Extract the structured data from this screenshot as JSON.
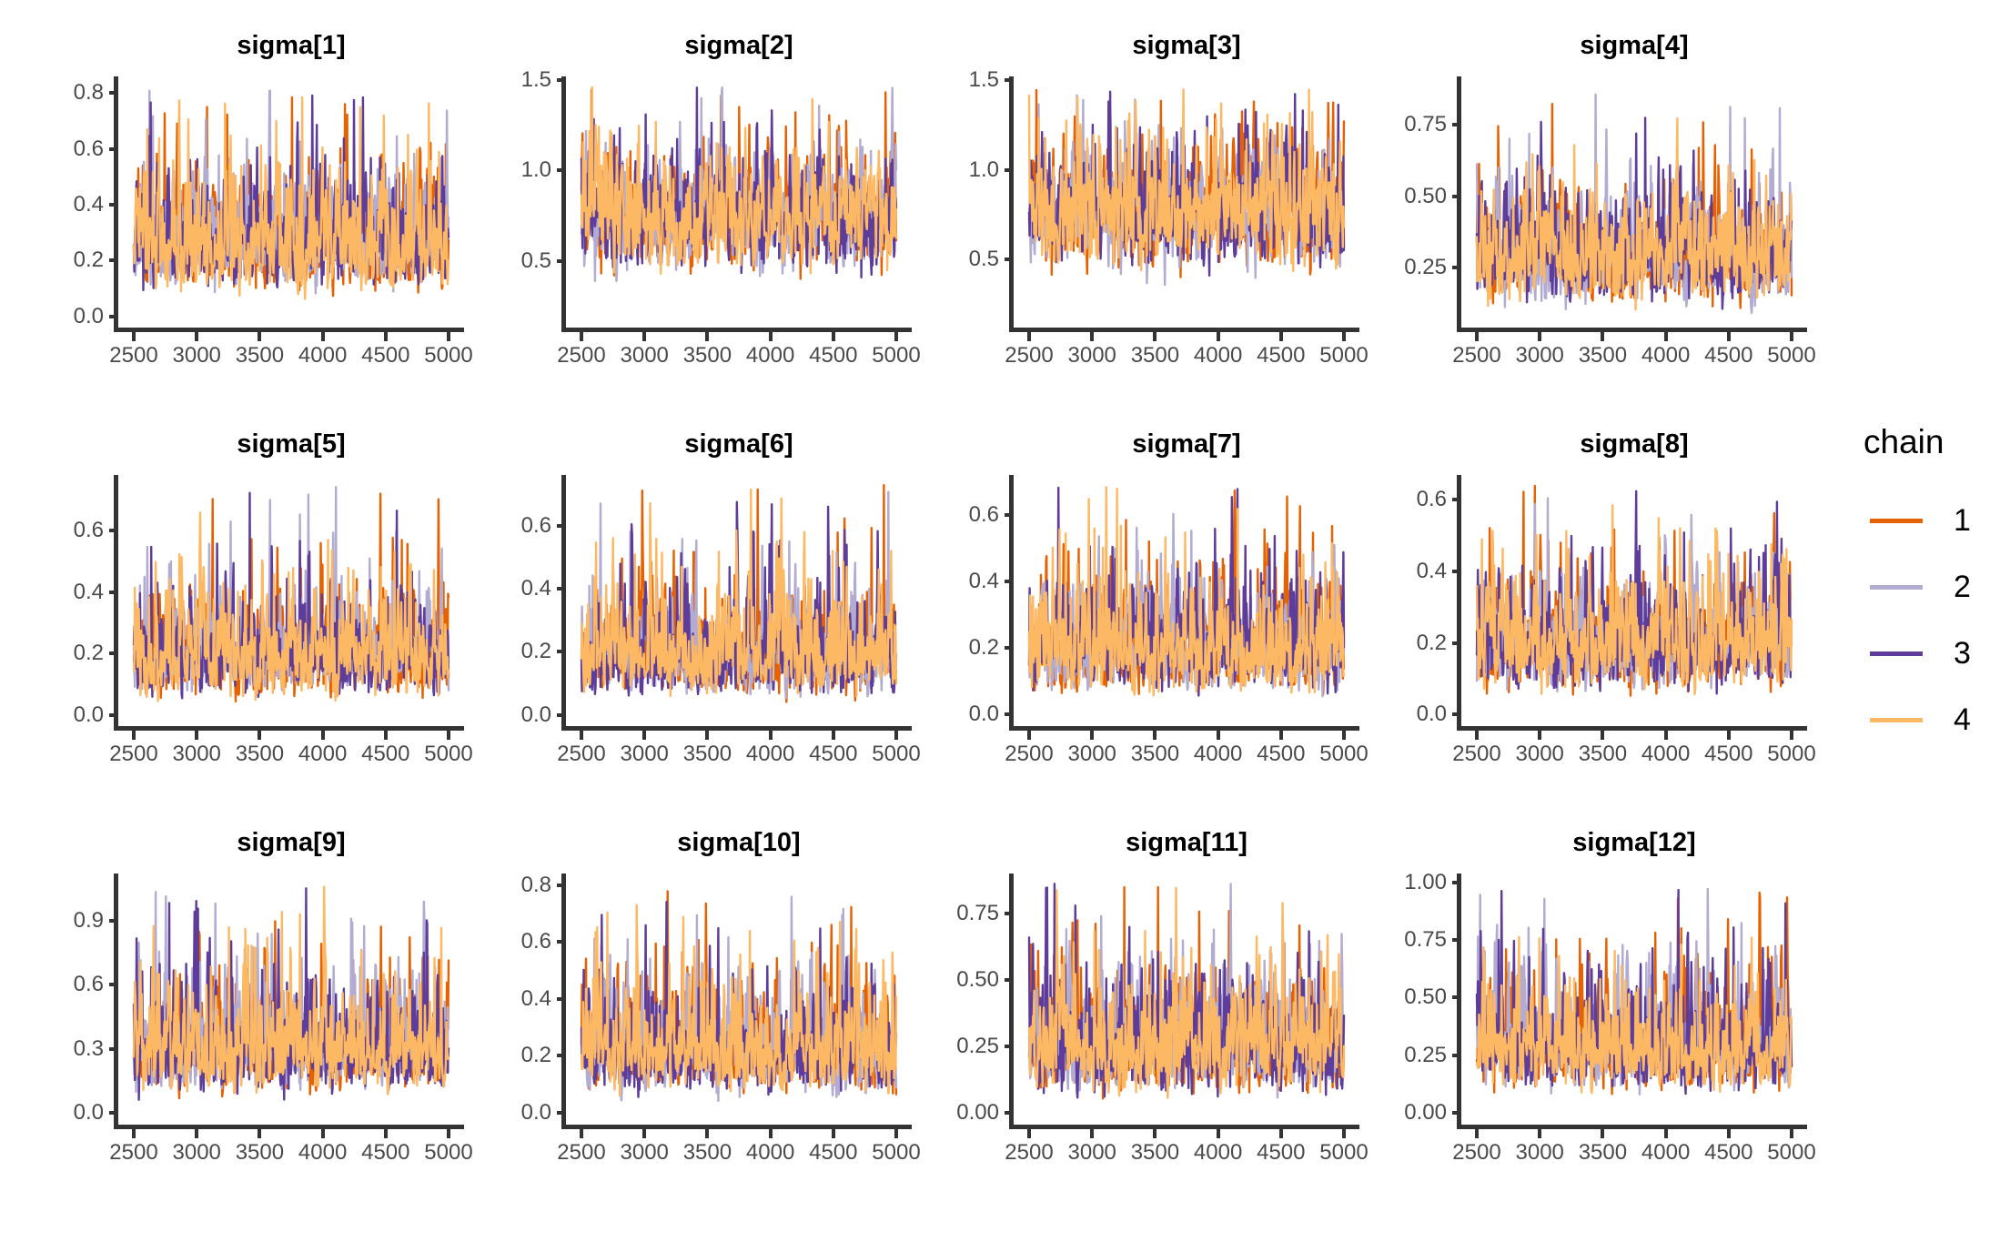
{
  "chart_data": {
    "type": "line",
    "subtype": "mcmc-trace-facets",
    "grid": {
      "rows": 3,
      "cols": 4
    },
    "background": "#ffffff",
    "axis_color": "#333333",
    "tick_label_color": "#4a4a4a",
    "x": {
      "label": "",
      "range": [
        2500,
        5000
      ],
      "tick_values": [
        2500,
        3000,
        3500,
        4000,
        4500,
        5000
      ],
      "tick_labels": [
        "2500",
        "3000",
        "3500",
        "4000",
        "4500",
        "5000"
      ]
    },
    "legend": {
      "title": "chain",
      "position": "right",
      "series": [
        {
          "label": "1",
          "color": "#E66101"
        },
        {
          "label": "2",
          "color": "#B2ABD2"
        },
        {
          "label": "3",
          "color": "#5E3C99"
        },
        {
          "label": "4",
          "color": "#FDB863"
        }
      ]
    },
    "panels": [
      {
        "title": "sigma[1]",
        "y_tick_labels": [
          "0.0",
          "0.2",
          "0.4",
          "0.6",
          "0.8"
        ],
        "y_tick_values": [
          0,
          0.2,
          0.4,
          0.6,
          0.8
        ],
        "ylim": [
          -0.04,
          0.86
        ],
        "trace": {
          "median": 0.27,
          "log_sd": 0.4,
          "min": 0.04,
          "max": 0.81
        }
      },
      {
        "title": "sigma[2]",
        "y_tick_labels": [
          "0.5",
          "1.0",
          "1.5"
        ],
        "y_tick_values": [
          0.5,
          1.0,
          1.5
        ],
        "ylim": [
          0.13,
          1.52
        ],
        "trace": {
          "median": 0.75,
          "log_sd": 0.22,
          "min": 0.28,
          "max": 1.46
        }
      },
      {
        "title": "sigma[3]",
        "y_tick_labels": [
          "0.5",
          "1.0",
          "1.5"
        ],
        "y_tick_values": [
          0.5,
          1.0,
          1.5
        ],
        "ylim": [
          0.12,
          1.52
        ],
        "trace": {
          "median": 0.78,
          "log_sd": 0.23,
          "min": 0.26,
          "max": 1.45
        }
      },
      {
        "title": "sigma[4]",
        "y_tick_labels": [
          "0.25",
          "0.50",
          "0.75"
        ],
        "y_tick_values": [
          0.25,
          0.5,
          0.75
        ],
        "ylim": [
          0.04,
          0.92
        ],
        "trace": {
          "median": 0.3,
          "log_sd": 0.34,
          "min": 0.09,
          "max": 0.87
        }
      },
      {
        "title": "sigma[5]",
        "y_tick_labels": [
          "0.0",
          "0.2",
          "0.4",
          "0.6"
        ],
        "y_tick_values": [
          0,
          0.2,
          0.4,
          0.6
        ],
        "ylim": [
          -0.035,
          0.78
        ],
        "trace": {
          "median": 0.2,
          "log_sd": 0.44,
          "min": 0.04,
          "max": 0.75
        }
      },
      {
        "title": "sigma[6]",
        "y_tick_labels": [
          "0.0",
          "0.2",
          "0.4",
          "0.6"
        ],
        "y_tick_values": [
          0,
          0.2,
          0.4,
          0.6
        ],
        "ylim": [
          -0.035,
          0.76
        ],
        "trace": {
          "median": 0.2,
          "log_sd": 0.44,
          "min": 0.04,
          "max": 0.73
        }
      },
      {
        "title": "sigma[7]",
        "y_tick_labels": [
          "0.0",
          "0.2",
          "0.4",
          "0.6"
        ],
        "y_tick_values": [
          0,
          0.2,
          0.4,
          0.6
        ],
        "ylim": [
          -0.035,
          0.72
        ],
        "trace": {
          "median": 0.2,
          "log_sd": 0.43,
          "min": 0.04,
          "max": 0.69
        }
      },
      {
        "title": "sigma[8]",
        "y_tick_labels": [
          "0.0",
          "0.2",
          "0.4",
          "0.6"
        ],
        "y_tick_values": [
          0,
          0.2,
          0.4,
          0.6
        ],
        "ylim": [
          -0.033,
          0.67
        ],
        "trace": {
          "median": 0.2,
          "log_sd": 0.41,
          "min": 0.03,
          "max": 0.64
        }
      },
      {
        "title": "sigma[9]",
        "y_tick_labels": [
          "0.0",
          "0.3",
          "0.6",
          "0.9"
        ],
        "y_tick_values": [
          0,
          0.3,
          0.6,
          0.9
        ],
        "ylim": [
          -0.055,
          1.12
        ],
        "trace": {
          "median": 0.31,
          "log_sd": 0.45,
          "min": 0.06,
          "max": 1.06
        }
      },
      {
        "title": "sigma[10]",
        "y_tick_labels": [
          "0.0",
          "0.2",
          "0.4",
          "0.6",
          "0.8"
        ],
        "y_tick_values": [
          0,
          0.2,
          0.4,
          0.6,
          0.8
        ],
        "ylim": [
          -0.042,
          0.84
        ],
        "trace": {
          "median": 0.22,
          "log_sd": 0.45,
          "min": 0.04,
          "max": 0.81
        }
      },
      {
        "title": "sigma[11]",
        "y_tick_labels": [
          "0.00",
          "0.25",
          "0.50",
          "0.75"
        ],
        "y_tick_values": [
          0,
          0.25,
          0.5,
          0.75
        ],
        "ylim": [
          -0.045,
          0.9
        ],
        "trace": {
          "median": 0.25,
          "log_sd": 0.46,
          "min": 0.04,
          "max": 0.87
        }
      },
      {
        "title": "sigma[12]",
        "y_tick_labels": [
          "0.00",
          "0.25",
          "0.50",
          "0.75",
          "1.00"
        ],
        "y_tick_values": [
          0,
          0.25,
          0.5,
          0.75,
          1.0
        ],
        "ylim": [
          -0.052,
          1.04
        ],
        "trace": {
          "median": 0.3,
          "log_sd": 0.43,
          "min": 0.06,
          "max": 1.0
        }
      }
    ]
  }
}
